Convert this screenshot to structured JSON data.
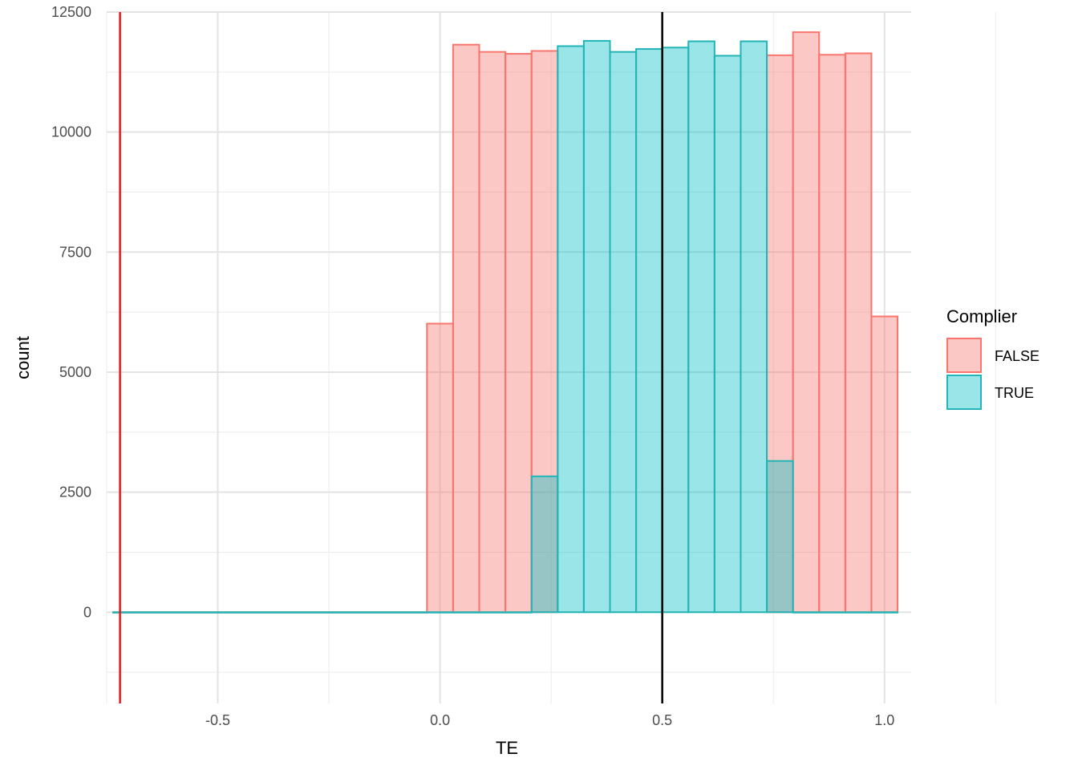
{
  "chart_data": {
    "type": "bar",
    "subtype": "histogram",
    "xlabel": "TE",
    "ylabel": "count",
    "xlim": [
      -0.75,
      1.06
    ],
    "ylim": [
      -1900,
      12500
    ],
    "x_ticks": [
      {
        "value": -0.5,
        "label": "-0.5"
      },
      {
        "value": 0.0,
        "label": "0.0"
      },
      {
        "value": 0.5,
        "label": "0.5"
      },
      {
        "value": 1.0,
        "label": "1.0"
      }
    ],
    "y_ticks": [
      {
        "value": 0,
        "label": "0"
      },
      {
        "value": 2500,
        "label": "2500"
      },
      {
        "value": 5000,
        "label": "5000"
      },
      {
        "value": 7500,
        "label": "7500"
      },
      {
        "value": 10000,
        "label": "10000"
      },
      {
        "value": 12500,
        "label": "12500"
      }
    ],
    "grid": true,
    "legend": {
      "title": "Complier",
      "placement": "right",
      "entries": [
        {
          "label": "FALSE",
          "series": "FALSE"
        },
        {
          "label": "TRUE",
          "series": "TRUE"
        }
      ]
    },
    "bin_width": 0.0588,
    "series": [
      {
        "name": "FALSE",
        "stroke": "#f8766d",
        "fill": "#f8766d",
        "bins": [
          {
            "x0": -0.7353,
            "x1": -0.0294,
            "count": 0
          },
          {
            "x0": -0.0294,
            "x1": 0.0294,
            "count": 6010
          },
          {
            "x0": 0.0294,
            "x1": 0.0882,
            "count": 11820
          },
          {
            "x0": 0.0882,
            "x1": 0.1471,
            "count": 11670
          },
          {
            "x0": 0.1471,
            "x1": 0.2059,
            "count": 11630
          },
          {
            "x0": 0.2059,
            "x1": 0.2647,
            "count": 11690
          },
          {
            "x0": 0.7353,
            "x1": 0.7941,
            "count": 11600
          },
          {
            "x0": 0.7941,
            "x1": 0.8529,
            "count": 12080
          },
          {
            "x0": 0.8529,
            "x1": 0.9118,
            "count": 11610
          },
          {
            "x0": 0.9118,
            "x1": 0.9706,
            "count": 11640
          },
          {
            "x0": 0.9706,
            "x1": 1.0294,
            "count": 6160
          }
        ]
      },
      {
        "name": "TRUE",
        "stroke": "#22b4b6",
        "fill": "#00bfc4",
        "bins": [
          {
            "x0": -0.7353,
            "x1": 0.2059,
            "count": 0
          },
          {
            "x0": 0.2059,
            "x1": 0.2647,
            "count": 2830
          },
          {
            "x0": 0.2647,
            "x1": 0.3235,
            "count": 11790
          },
          {
            "x0": 0.3235,
            "x1": 0.3824,
            "count": 11900
          },
          {
            "x0": 0.3824,
            "x1": 0.4412,
            "count": 11670
          },
          {
            "x0": 0.4412,
            "x1": 0.5,
            "count": 11730
          },
          {
            "x0": 0.5,
            "x1": 0.5588,
            "count": 11760
          },
          {
            "x0": 0.5588,
            "x1": 0.6176,
            "count": 11890
          },
          {
            "x0": 0.6176,
            "x1": 0.6765,
            "count": 11590
          },
          {
            "x0": 0.6765,
            "x1": 0.7353,
            "count": 11890
          },
          {
            "x0": 0.7353,
            "x1": 0.7941,
            "count": 3150
          },
          {
            "x0": 0.7941,
            "x1": 1.0294,
            "count": 0
          }
        ]
      }
    ],
    "vertical_lines": [
      {
        "x": -0.72,
        "color": "#e41a1c"
      },
      {
        "x": 0.5,
        "color": "#000000"
      }
    ]
  }
}
